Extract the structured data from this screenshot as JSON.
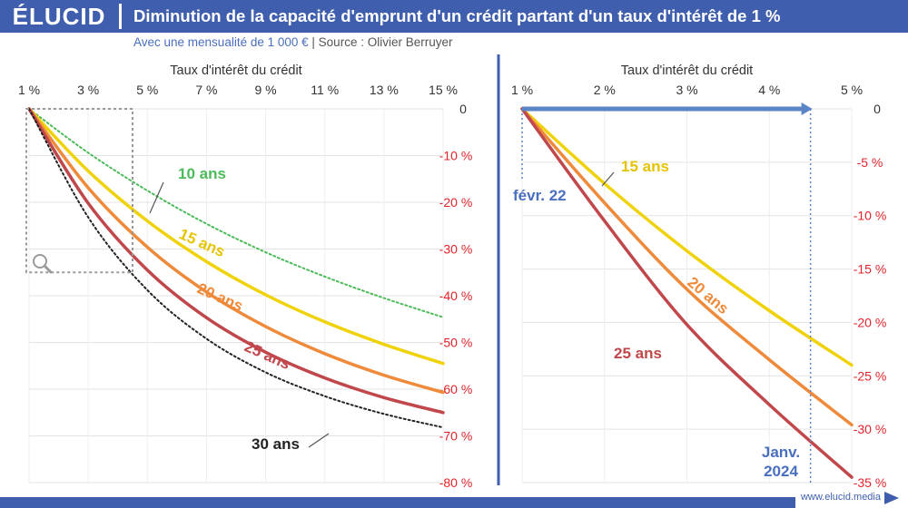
{
  "brand": {
    "logo_text": "ÉLUCID",
    "website": "www.elucid.media",
    "colors": {
      "brand": "#3f5fae",
      "axis_negative": "#e0242a"
    }
  },
  "title": "Diminution de la capacité d'emprunt d'un crédit partant d'un taux d'intérêt de 1 %",
  "subtitle": {
    "main": "Avec une mensualité de 1 000 €",
    "source": "Source : Olivier Berruyer"
  },
  "icons": [
    "magnifier-icon",
    "arrow-right-icon"
  ],
  "chart_data": [
    {
      "type": "line",
      "xlabel": "Taux d'intérêt du crédit",
      "x_tick_labels": [
        "1 %",
        "3 %",
        "5 %",
        "7 %",
        "9 %",
        "11 %",
        "13 %",
        "15 %"
      ],
      "y_tick_labels": [
        "0",
        "-10 %",
        "-20 %",
        "-30 %",
        "-40 %",
        "-50 %",
        "-60 %",
        "-70 %",
        "-80 %"
      ],
      "xlim": [
        1,
        15
      ],
      "ylim": [
        -80,
        0
      ],
      "x_ticks": [
        1,
        3,
        5,
        7,
        9,
        11,
        13,
        15
      ],
      "y_ticks": [
        0,
        -10,
        -20,
        -30,
        -40,
        -50,
        -60,
        -70,
        -80
      ],
      "grid": true,
      "series": [
        {
          "name": "10 ans",
          "color": "#4cbb5a",
          "style": "dotted",
          "x": [
            1,
            3,
            5,
            7,
            9,
            11,
            13,
            15
          ],
          "values": [
            0,
            -9.4,
            -17.5,
            -24.6,
            -30.7,
            -35.9,
            -40.5,
            -44.6
          ]
        },
        {
          "name": "15 ans",
          "color": "#f0d20a",
          "style": "solid",
          "x": [
            1,
            3,
            5,
            7,
            9,
            11,
            13,
            15
          ],
          "values": [
            0,
            -13.3,
            -24.0,
            -32.7,
            -39.8,
            -45.6,
            -50.4,
            -54.5
          ]
        },
        {
          "name": "20 ans",
          "color": "#ef8a3a",
          "style": "solid",
          "x": [
            1,
            3,
            5,
            7,
            9,
            11,
            13,
            15
          ],
          "values": [
            0,
            -16.9,
            -29.6,
            -39.2,
            -46.6,
            -52.4,
            -57.0,
            -60.7
          ]
        },
        {
          "name": "25 ans",
          "color": "#c0474b",
          "style": "solid",
          "x": [
            1,
            3,
            5,
            7,
            9,
            11,
            13,
            15
          ],
          "values": [
            0,
            -20.2,
            -34.5,
            -44.7,
            -52.1,
            -57.6,
            -61.8,
            -65.0
          ]
        },
        {
          "name": "30 ans",
          "color": "#222222",
          "style": "dotted",
          "x": [
            1,
            3,
            5,
            7,
            9,
            11,
            13,
            15
          ],
          "values": [
            0,
            -23.2,
            -38.8,
            -49.2,
            -56.4,
            -61.5,
            -65.3,
            -68.2
          ]
        }
      ]
    },
    {
      "type": "line",
      "xlabel": "Taux d'intérêt du crédit",
      "x_tick_labels": [
        "1 %",
        "2 %",
        "3 %",
        "4 %",
        "5 %"
      ],
      "y_tick_labels": [
        "0",
        "-5 %",
        "-10 %",
        "-15 %",
        "-20 %",
        "-25 %",
        "-30 %",
        "-35 %"
      ],
      "xlim": [
        1,
        5
      ],
      "ylim": [
        -35,
        0
      ],
      "x_ticks": [
        1,
        2,
        3,
        4,
        5
      ],
      "y_ticks": [
        0,
        -5,
        -10,
        -15,
        -20,
        -25,
        -30,
        -35
      ],
      "grid": true,
      "series": [
        {
          "name": "15 ans",
          "color": "#f0d20a",
          "x": [
            1,
            2,
            3,
            4,
            5
          ],
          "values": [
            0,
            -7.0,
            -13.3,
            -18.9,
            -24.0
          ]
        },
        {
          "name": "20 ans",
          "color": "#ef8a3a",
          "x": [
            1,
            2,
            3,
            4,
            5
          ],
          "values": [
            0,
            -8.8,
            -16.9,
            -23.5,
            -29.6
          ]
        },
        {
          "name": "25 ans",
          "color": "#c0474b",
          "x": [
            1,
            2,
            3,
            4,
            5
          ],
          "values": [
            0,
            -10.5,
            -20.2,
            -27.7,
            -34.5
          ]
        }
      ],
      "annotations": [
        {
          "label": "févr. 22",
          "x": 1.0
        },
        {
          "label": "Janv. 2024",
          "x": 4.5
        }
      ]
    }
  ]
}
